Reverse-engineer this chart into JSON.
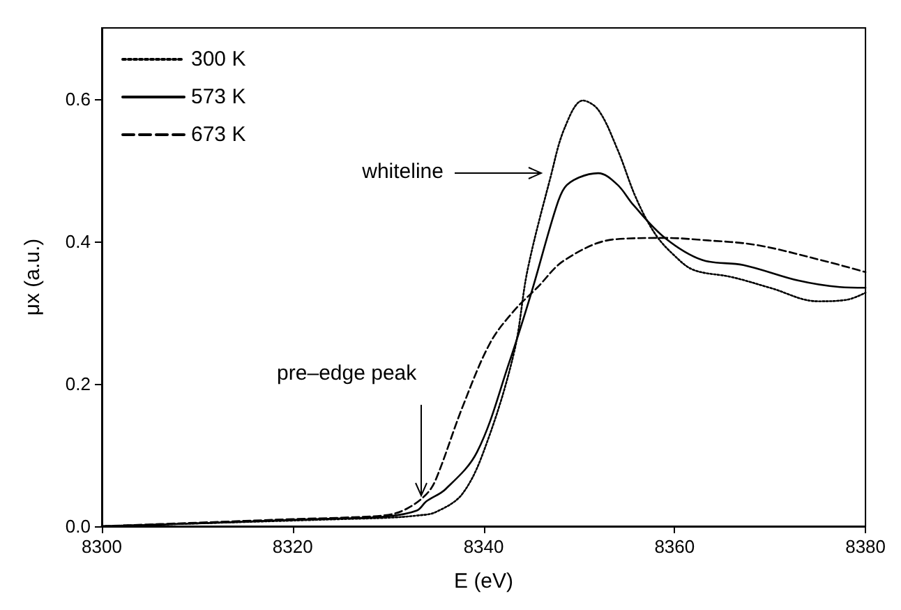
{
  "chart_data": {
    "type": "line",
    "xlabel": "E (eV)",
    "ylabel": "μx (a.u.)",
    "xlim": [
      8300,
      8380
    ],
    "xticks": [
      8300,
      8320,
      8340,
      8360,
      8380
    ],
    "ylim": [
      0,
      0.7
    ],
    "yticks": [
      {
        "value": 0,
        "label": "0.0"
      },
      0.2,
      0.4,
      0.6
    ],
    "grid": false,
    "legend": "top left",
    "marker": "none",
    "annotations": [
      "whiteline",
      {
        "text": "pre–edge peak",
        "x": 8333.4,
        "y": 0.04
      }
    ],
    "series": [
      {
        "name": "300 K",
        "color": "#000000",
        "line_style": "dotted",
        "x": [
          8300,
          8310,
          8320,
          8325,
          8330,
          8333,
          8335,
          8337.8,
          8340.3,
          8343.2,
          8344.6,
          8347,
          8348.5,
          8350.4,
          8352,
          8354,
          8356,
          8358,
          8360,
          8362,
          8366,
          8370,
          8375,
          8378,
          8380
        ],
        "values": [
          0,
          0.004,
          0.008,
          0.01,
          0.012,
          0.015,
          0.02,
          0.046,
          0.116,
          0.245,
          0.36,
          0.49,
          0.56,
          0.598,
          0.585,
          0.53,
          0.46,
          0.41,
          0.38,
          0.36,
          0.35,
          0.335,
          0.316,
          0.318,
          0.328
        ]
      },
      {
        "name": "573 K",
        "color": "#000000",
        "line_style": "solid",
        "x": [
          8300,
          8310,
          8320,
          8325,
          8330,
          8333,
          8334,
          8336,
          8339.3,
          8342.7,
          8345,
          8347.5,
          8348.5,
          8350,
          8352,
          8354,
          8355.7,
          8359,
          8362.9,
          8367.2,
          8373,
          8377.3,
          8380
        ],
        "values": [
          0,
          0.004,
          0.009,
          0.011,
          0.014,
          0.022,
          0.035,
          0.052,
          0.104,
          0.231,
          0.328,
          0.444,
          0.476,
          0.49,
          0.496,
          0.48,
          0.451,
          0.405,
          0.374,
          0.367,
          0.345,
          0.336,
          0.335
        ]
      },
      {
        "name": "673 K",
        "color": "#000000",
        "line_style": "dashed",
        "x": [
          8300,
          8310,
          8320,
          8325,
          8330,
          8332,
          8334,
          8335,
          8337.8,
          8340.7,
          8343.2,
          8345.6,
          8348.5,
          8353.7,
          8359,
          8363,
          8368.6,
          8375.3,
          8380
        ],
        "values": [
          0,
          0.005,
          0.01,
          0.012,
          0.016,
          0.025,
          0.045,
          0.066,
          0.168,
          0.258,
          0.303,
          0.335,
          0.374,
          0.403,
          0.405,
          0.402,
          0.395,
          0.374,
          0.357
        ]
      }
    ]
  }
}
